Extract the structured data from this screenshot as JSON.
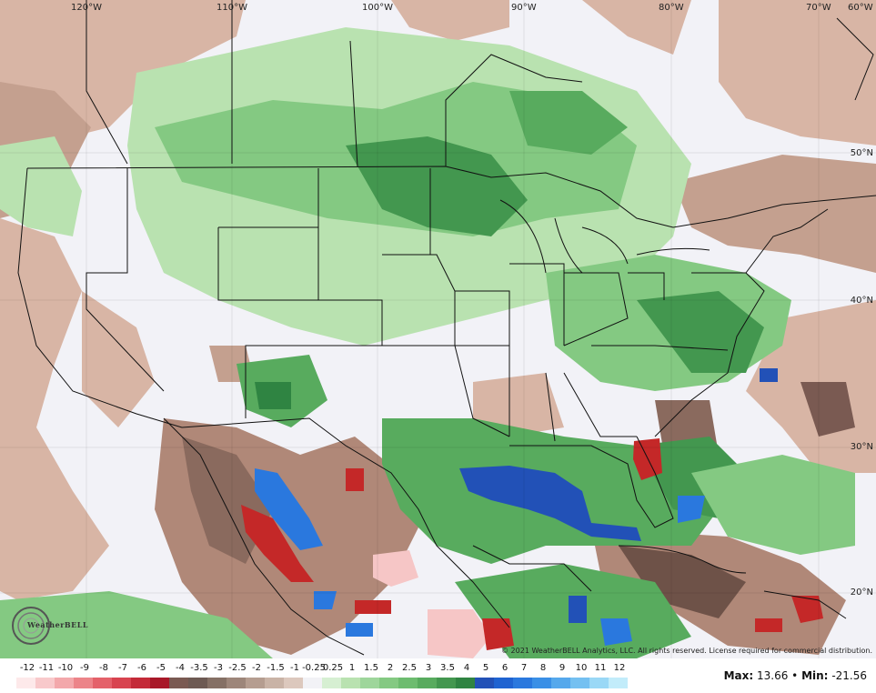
{
  "map": {
    "lon_labels": [
      "120°W",
      "110°W",
      "100°W",
      "90°W",
      "80°W",
      "70°W",
      "60°W"
    ],
    "lat_labels": [
      "50°N",
      "40°N",
      "30°N",
      "20°N"
    ],
    "copyright": "© 2021 WeatherBELL Analytics, LLC. All rights reserved. License required for commercial distribution.",
    "logo_text": "WeatherBELL",
    "colors": {
      "brown_light": "#d8b5a5",
      "brown_mid": "#b08878",
      "brown_dark": "#6e5248",
      "green_light": "#b9e2b0",
      "green_mid": "#7ccb79",
      "green_dark": "#3f9a4f",
      "blue": "#1a63c9",
      "red": "#c42828",
      "pink": "#f6c6c6",
      "white_zone": "#f2f2f7"
    }
  },
  "legend": {
    "ticks": [
      "-12",
      "-11",
      "-10",
      "-9",
      "-8",
      "-7",
      "-6",
      "-5",
      "-4",
      "-3.5",
      "-3",
      "-2.5",
      "-2",
      "-1.5",
      "-1",
      "-0.25",
      "0.25",
      "1",
      "1.5",
      "2",
      "2.5",
      "3",
      "3.5",
      "4",
      "5",
      "6",
      "7",
      "8",
      "9",
      "10",
      "11",
      "12"
    ],
    "swatch_colors": [
      "#fde9ea",
      "#f8c9cb",
      "#f3a8ab",
      "#ec8489",
      "#e4616a",
      "#d8434f",
      "#c42a38",
      "#a81828",
      "#7a5a52",
      "#6d5a53",
      "#857065",
      "#9d867a",
      "#b59d90",
      "#c9b3a6",
      "#dcc8bd",
      "#f2f2f6",
      "#d6efd2",
      "#b9e2b0",
      "#9ed69b",
      "#84c982",
      "#6dbc6f",
      "#58ab5e",
      "#43974f",
      "#2f8442",
      "#2251b7",
      "#1f63d1",
      "#2a78de",
      "#3a8fe6",
      "#55a8ec",
      "#74c0f1",
      "#9ad8f6",
      "#c2ecfa"
    ],
    "max_label": "Max:",
    "max_value": "13.66",
    "sep": "•",
    "min_label": "Min:",
    "min_value": "-21.56"
  }
}
